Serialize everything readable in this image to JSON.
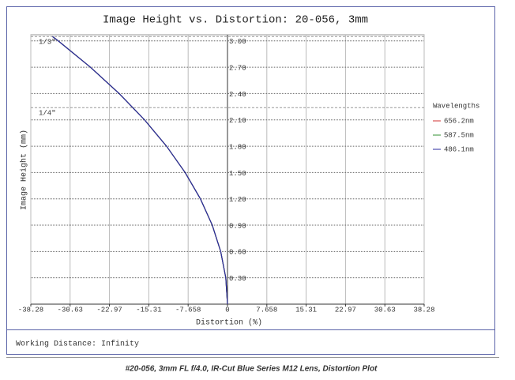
{
  "chart_data": {
    "type": "line",
    "title": "Image Height vs. Distortion: 20-056, 3mm",
    "x_label": "Distortion (%)",
    "y_label": "Image Height (mm)",
    "xlim": [
      -38.28,
      38.28
    ],
    "xticks": [
      -38.28,
      -30.63,
      -22.97,
      -15.31,
      -7.658,
      0,
      7.658,
      15.31,
      22.97,
      30.63,
      38.28
    ],
    "ylim": [
      0,
      3.07
    ],
    "yticks": [
      {
        "value": 0.3,
        "label": "0.30"
      },
      {
        "value": 0.6,
        "label": "0.60"
      },
      {
        "value": 0.9,
        "label": "0.90"
      },
      {
        "value": 1.2,
        "label": "1.20"
      },
      {
        "value": 1.5,
        "label": "1.50"
      },
      {
        "value": 1.8,
        "label": "1.80"
      },
      {
        "value": 2.1,
        "label": "2.10"
      },
      {
        "value": 2.4,
        "label": "2.40"
      },
      {
        "value": 2.7,
        "label": "2.70"
      },
      {
        "value": 3.0,
        "label": "3.00"
      }
    ],
    "grid": true,
    "reference_lines": [
      {
        "label": "1/3\"",
        "value": 3.05
      },
      {
        "label": "1/4\"",
        "value": 2.24
      }
    ],
    "legend_title": "Wavelengths",
    "legend_position": "right",
    "heights": [
      0,
      0.3,
      0.6,
      0.9,
      1.2,
      1.5,
      1.8,
      2.1,
      2.4,
      2.7,
      3.0,
      3.05
    ],
    "series": [
      {
        "name": "656.2nm",
        "color": "#d03030",
        "values": [
          0,
          -0.33,
          -1.32,
          -2.96,
          -5.27,
          -8.24,
          -11.86,
          -16.14,
          -21.08,
          -26.68,
          -32.94,
          -34.05
        ]
      },
      {
        "name": "587.5nm",
        "color": "#309030",
        "values": [
          0,
          -0.33,
          -1.32,
          -2.96,
          -5.27,
          -8.24,
          -11.86,
          -16.14,
          -21.08,
          -26.68,
          -32.94,
          -34.05
        ]
      },
      {
        "name": "486.1nm",
        "color": "#2a2aa0",
        "values": [
          0,
          -0.33,
          -1.32,
          -2.96,
          -5.27,
          -8.24,
          -11.86,
          -16.14,
          -21.08,
          -26.68,
          -32.94,
          -34.05
        ]
      }
    ],
    "footer": "Working Distance: Infinity"
  },
  "caption": "#20-056, 3mm FL f/4.0, IR-Cut Blue Series M12 Lens, Distortion Plot"
}
